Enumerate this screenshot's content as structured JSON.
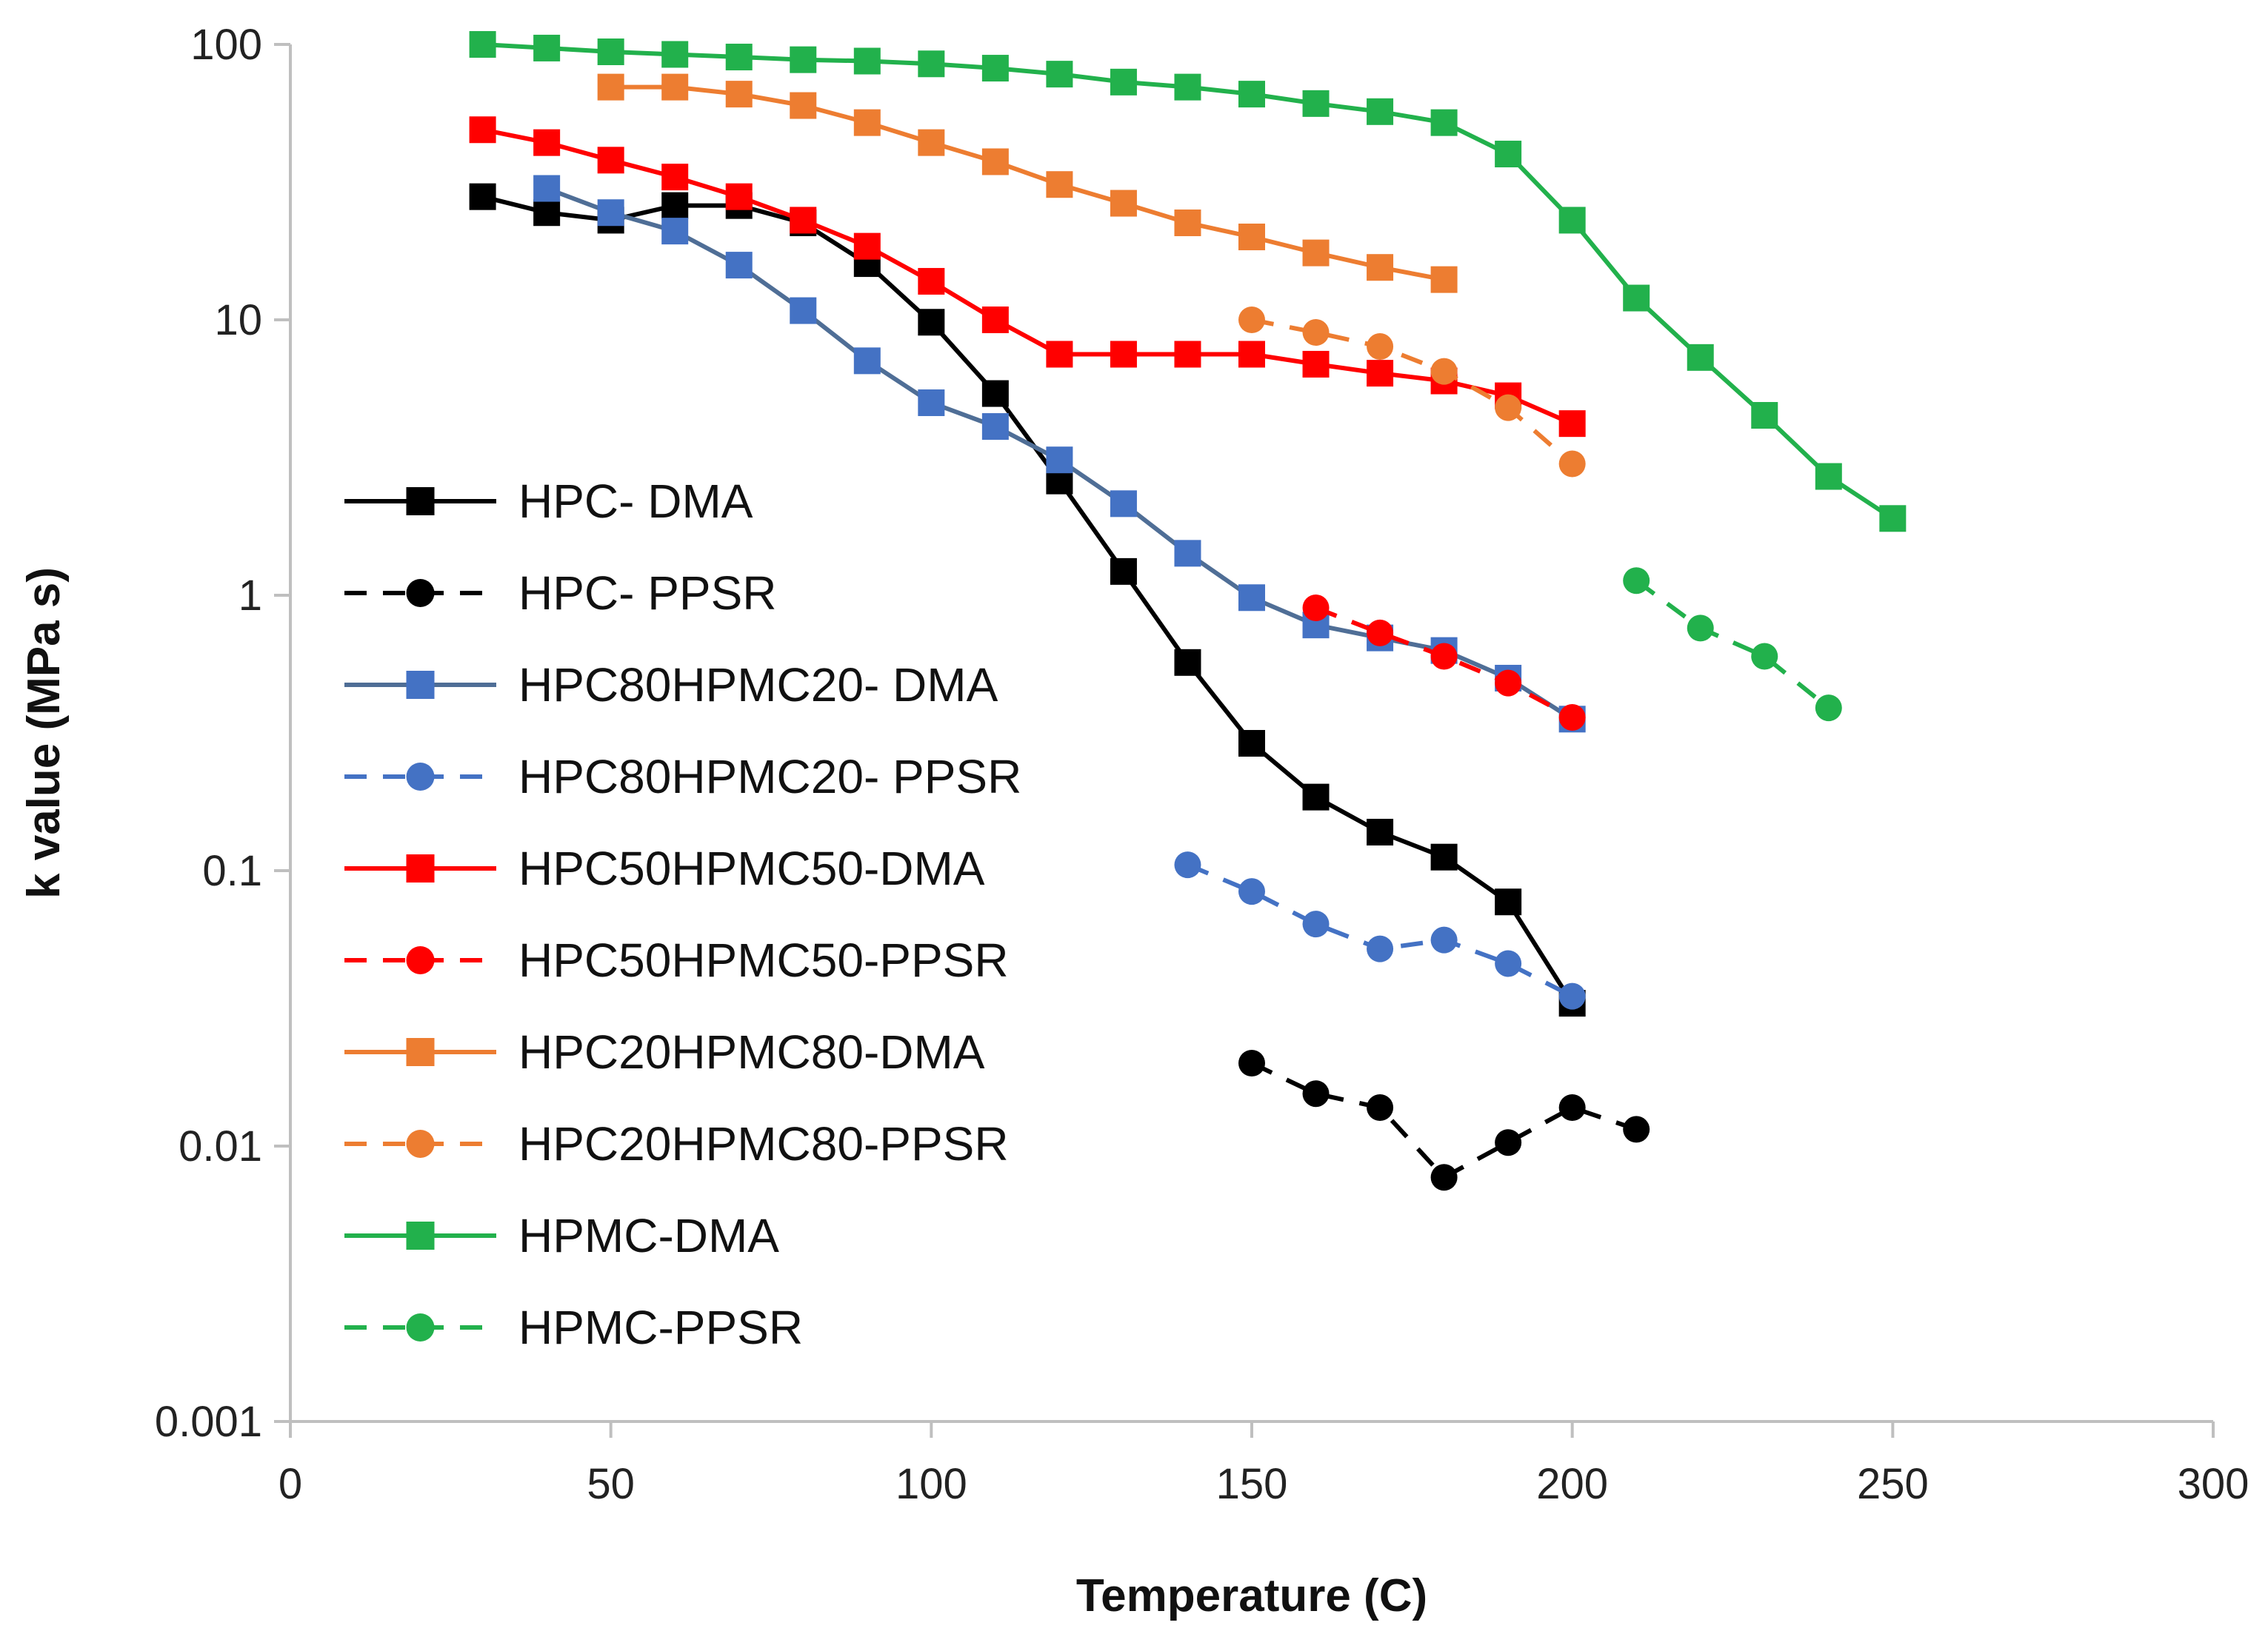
{
  "chart_data": {
    "type": "line",
    "xlabel": "Temperature (C)",
    "ylabel": "k value (MPa s)",
    "xlim": [
      0,
      300
    ],
    "ylim": [
      0.001,
      100
    ],
    "yscale": "log",
    "xticks": [
      "0",
      "50",
      "100",
      "150",
      "200",
      "250",
      "300"
    ],
    "yticks": [
      "0.001",
      "0.01",
      "0.1",
      "1",
      "10",
      "100"
    ],
    "legend_position": "left",
    "grid": false,
    "series": [
      {
        "name": "HPC- DMA",
        "color": "#000000",
        "marker": "square",
        "dashed": false,
        "x": [
          30,
          40,
          50,
          60,
          70,
          80,
          90,
          100,
          110,
          120,
          130,
          140,
          150,
          160,
          170,
          180,
          190,
          200
        ],
        "y": [
          28,
          24.5,
          23,
          26,
          26,
          22.5,
          16,
          9.8,
          5.4,
          2.6,
          1.22,
          0.57,
          0.29,
          0.185,
          0.138,
          0.112,
          0.077,
          0.033
        ]
      },
      {
        "name": "HPC- PPSR",
        "color": "#000000",
        "marker": "circle",
        "dashed": true,
        "x": [
          150,
          160,
          170,
          180,
          190,
          200,
          210
        ],
        "y": [
          0.02,
          0.0155,
          0.0138,
          0.0077,
          0.0103,
          0.0138,
          0.0115
        ]
      },
      {
        "name": "HPC80HPMC20- DMA",
        "color": "#4f6e96",
        "marker_color": "#4472c4",
        "marker": "square",
        "dashed": false,
        "x": [
          40,
          50,
          60,
          70,
          80,
          90,
          100,
          110,
          120,
          130,
          140,
          150,
          160,
          170,
          180,
          190,
          200
        ],
        "y": [
          30,
          24.5,
          21,
          15.8,
          10.8,
          7.1,
          5,
          4.1,
          3.1,
          2.15,
          1.42,
          0.98,
          0.78,
          0.7,
          0.63,
          0.5,
          0.355
        ]
      },
      {
        "name": "HPC80HPMC20- PPSR",
        "color": "#4472c4",
        "marker": "circle",
        "dashed": true,
        "x": [
          140,
          150,
          160,
          170,
          180,
          190,
          200
        ],
        "y": [
          0.105,
          0.084,
          0.064,
          0.052,
          0.056,
          0.046,
          0.035
        ]
      },
      {
        "name": "HPC50HPMC50-DMA",
        "color": "#ff0000",
        "marker": "square",
        "dashed": false,
        "x": [
          30,
          40,
          50,
          60,
          70,
          80,
          90,
          100,
          110,
          120,
          130,
          140,
          150,
          160,
          170,
          180,
          190,
          200
        ],
        "y": [
          49,
          44,
          38,
          33,
          28,
          23,
          18.5,
          13.8,
          10,
          7.5,
          7.5,
          7.5,
          7.5,
          6.9,
          6.4,
          6,
          5.3,
          4.2
        ]
      },
      {
        "name": "HPC50HPMC50-PPSR",
        "color": "#ff0000",
        "marker": "circle",
        "dashed": true,
        "x": [
          160,
          170,
          180,
          190,
          200
        ],
        "y": [
          0.9,
          0.73,
          0.6,
          0.48,
          0.36
        ]
      },
      {
        "name": "HPC20HPMC80-DMA",
        "color": "#ed7d31",
        "marker": "square",
        "dashed": false,
        "x": [
          50,
          60,
          70,
          80,
          90,
          100,
          110,
          120,
          130,
          140,
          150,
          160,
          170,
          180
        ],
        "y": [
          70,
          70,
          66,
          60,
          52,
          44,
          37.5,
          31,
          26.5,
          22.5,
          20,
          17.5,
          15.5,
          14
        ]
      },
      {
        "name": "HPC20HPMC80-PPSR",
        "color": "#ed7d31",
        "marker": "circle",
        "dashed": true,
        "x": [
          150,
          160,
          170,
          180,
          190,
          200
        ],
        "y": [
          10,
          9,
          8,
          6.5,
          4.8,
          3
        ]
      },
      {
        "name": "HPMC-DMA",
        "color": "#22b14c",
        "marker": "square",
        "dashed": false,
        "x": [
          30,
          40,
          50,
          60,
          70,
          80,
          90,
          100,
          110,
          120,
          130,
          140,
          150,
          160,
          170,
          180,
          190,
          200,
          210,
          220,
          230,
          240,
          250
        ],
        "y": [
          100,
          97,
          94,
          92,
          90,
          88,
          87,
          85,
          82,
          78,
          73,
          70,
          66,
          61,
          57,
          52,
          40,
          23,
          12,
          7.3,
          4.5,
          2.7,
          1.9
        ]
      },
      {
        "name": "HPMC-PPSR",
        "color": "#22b14c",
        "marker": "circle",
        "dashed": true,
        "x": [
          210,
          220,
          230,
          240
        ],
        "y": [
          1.13,
          0.76,
          0.6,
          0.39
        ]
      }
    ]
  }
}
